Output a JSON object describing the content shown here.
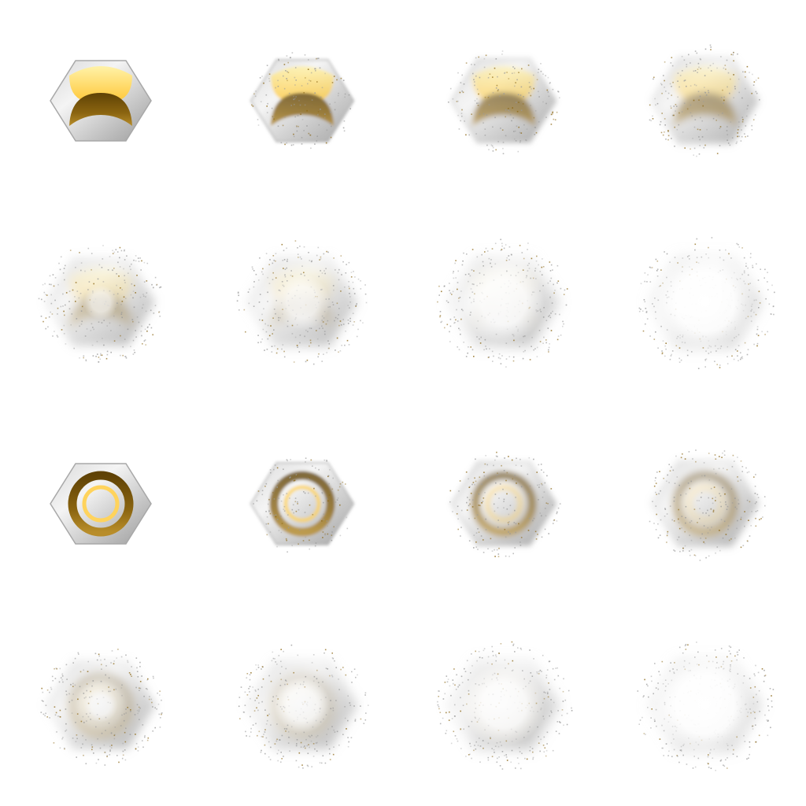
{
  "colors": {
    "background": "#ffffff",
    "metal_light": "#f3f3f3",
    "metal_mid": "#c9c9c9",
    "metal_dark": "#9a9a9a",
    "gold_bright": "#ffd35c",
    "gold_pale": "#fff3b8",
    "bronze_dark": "#6f4e08",
    "glow_white": "#ffffff"
  },
  "sprite_sheet": {
    "columns": 4,
    "rows": 4,
    "animations": [
      {
        "id": "crescent-emblem-dissolve",
        "emblem": "crescent-icon",
        "frames": [
          {
            "dissolve": 0.0,
            "glow": 0.0
          },
          {
            "dissolve": 0.22,
            "glow": 0.0
          },
          {
            "dissolve": 0.38,
            "glow": 0.0
          },
          {
            "dissolve": 0.52,
            "glow": 0.0
          },
          {
            "dissolve": 0.68,
            "glow": 0.15
          },
          {
            "dissolve": 0.78,
            "glow": 0.4
          },
          {
            "dissolve": 0.88,
            "glow": 0.7
          },
          {
            "dissolve": 0.96,
            "glow": 1.0
          }
        ]
      },
      {
        "id": "ring-emblem-dissolve",
        "emblem": "ring-icon",
        "frames": [
          {
            "dissolve": 0.0,
            "glow": 0.0
          },
          {
            "dissolve": 0.22,
            "glow": 0.0
          },
          {
            "dissolve": 0.38,
            "glow": 0.0
          },
          {
            "dissolve": 0.52,
            "glow": 0.0
          },
          {
            "dissolve": 0.68,
            "glow": 0.15
          },
          {
            "dissolve": 0.78,
            "glow": 0.4
          },
          {
            "dissolve": 0.88,
            "glow": 0.7
          },
          {
            "dissolve": 0.96,
            "glow": 1.0
          }
        ]
      }
    ]
  }
}
